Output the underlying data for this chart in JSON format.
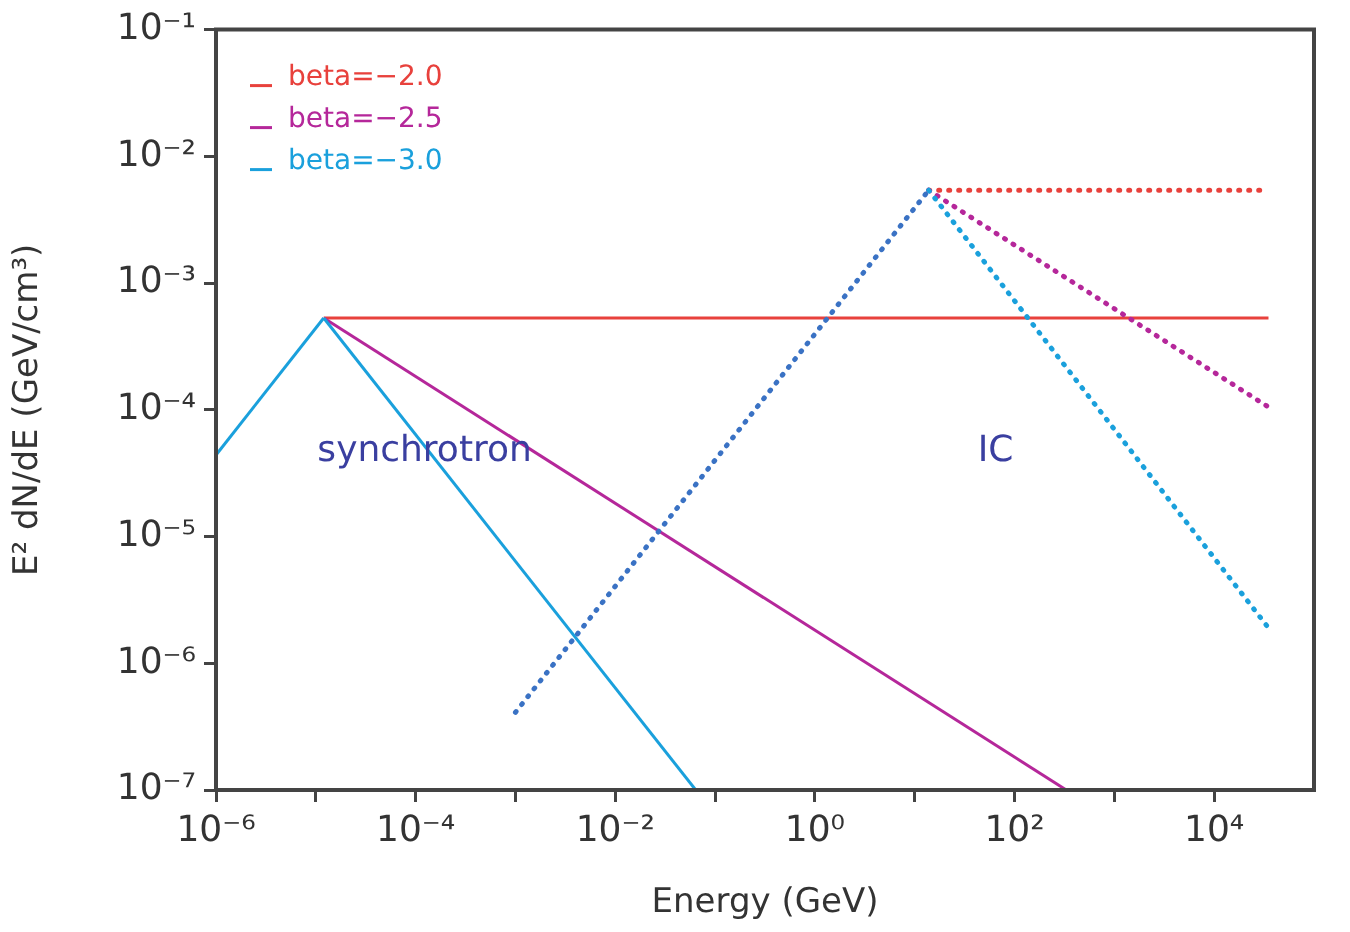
{
  "chart_data": {
    "type": "line",
    "xlabel": "Energy (GeV)",
    "ylabel": "E² dN/dE (GeV/cm³)",
    "log": "xy",
    "grid": false,
    "legend": "top left",
    "marker": "none",
    "xlim": [
      1e-06,
      100000.0
    ],
    "ylim": [
      1e-07,
      0.1
    ],
    "xticks": [
      {
        "value": 1e-06,
        "label": "10⁻⁶"
      },
      {
        "value": 1e-05,
        "label": null
      },
      {
        "value": 0.0001,
        "label": "10⁻⁴"
      },
      {
        "value": 0.001,
        "label": null
      },
      {
        "value": 0.01,
        "label": "10⁻²"
      },
      {
        "value": 0.1,
        "label": null
      },
      {
        "value": 1,
        "label": "10⁰"
      },
      {
        "value": 10,
        "label": null
      },
      {
        "value": 100,
        "label": "10²"
      },
      {
        "value": 1000,
        "label": null
      },
      {
        "value": 10000,
        "label": "10⁴"
      }
    ],
    "yticks": [
      {
        "value": 1e-07,
        "label": "10⁻⁷"
      },
      {
        "value": 1e-06,
        "label": "10⁻⁶"
      },
      {
        "value": 1e-05,
        "label": "10⁻⁵"
      },
      {
        "value": 0.0001,
        "label": "10⁻⁴"
      },
      {
        "value": 0.001,
        "label": "10⁻³"
      },
      {
        "value": 0.01,
        "label": "10⁻²"
      },
      {
        "value": 0.1,
        "label": "10⁻¹"
      }
    ],
    "series": [
      {
        "name": "beta=−2.0",
        "color": "#e8413c",
        "line_style": "solid",
        "x": [
          1.2e-05,
          35000.0
        ],
        "values": [
          0.00053,
          0.00053
        ]
      },
      {
        "name": "beta=−2.5",
        "color": "#b5279a",
        "line_style": "solid",
        "x": [
          1.2e-05,
          330
        ],
        "values": [
          0.00053,
          1e-07
        ]
      },
      {
        "name": "beta=−3.0",
        "color": "#1aa0dc",
        "line_style": "solid",
        "x": [
          1.2e-05,
          0.064
        ],
        "values": [
          0.00053,
          1e-07
        ]
      },
      {
        "color": "#1aa0dc",
        "line_style": "solid",
        "x": [
          1e-06,
          1.2e-05
        ],
        "values": [
          4.4e-05,
          0.00053
        ]
      },
      {
        "color": "#e8413c",
        "line_style": "dotted",
        "x": [
          13.8,
          35000.0
        ],
        "values": [
          0.0054,
          0.0054
        ]
      },
      {
        "color": "#b5279a",
        "line_style": "dotted",
        "x": [
          13.8,
          35000.0
        ],
        "values": [
          0.0054,
          0.000105
        ]
      },
      {
        "color": "#3a72c4",
        "line_style": "dotted",
        "x": [
          0.001,
          13.8
        ],
        "values": [
          4.1e-07,
          0.0054
        ]
      },
      {
        "color": "#1aa0dc",
        "line_style": "dotted",
        "x": [
          13.8,
          35000.0
        ],
        "values": [
          0.0054,
          1.9e-06
        ]
      }
    ],
    "annotations": [
      "synchrotron",
      "IC"
    ]
  }
}
